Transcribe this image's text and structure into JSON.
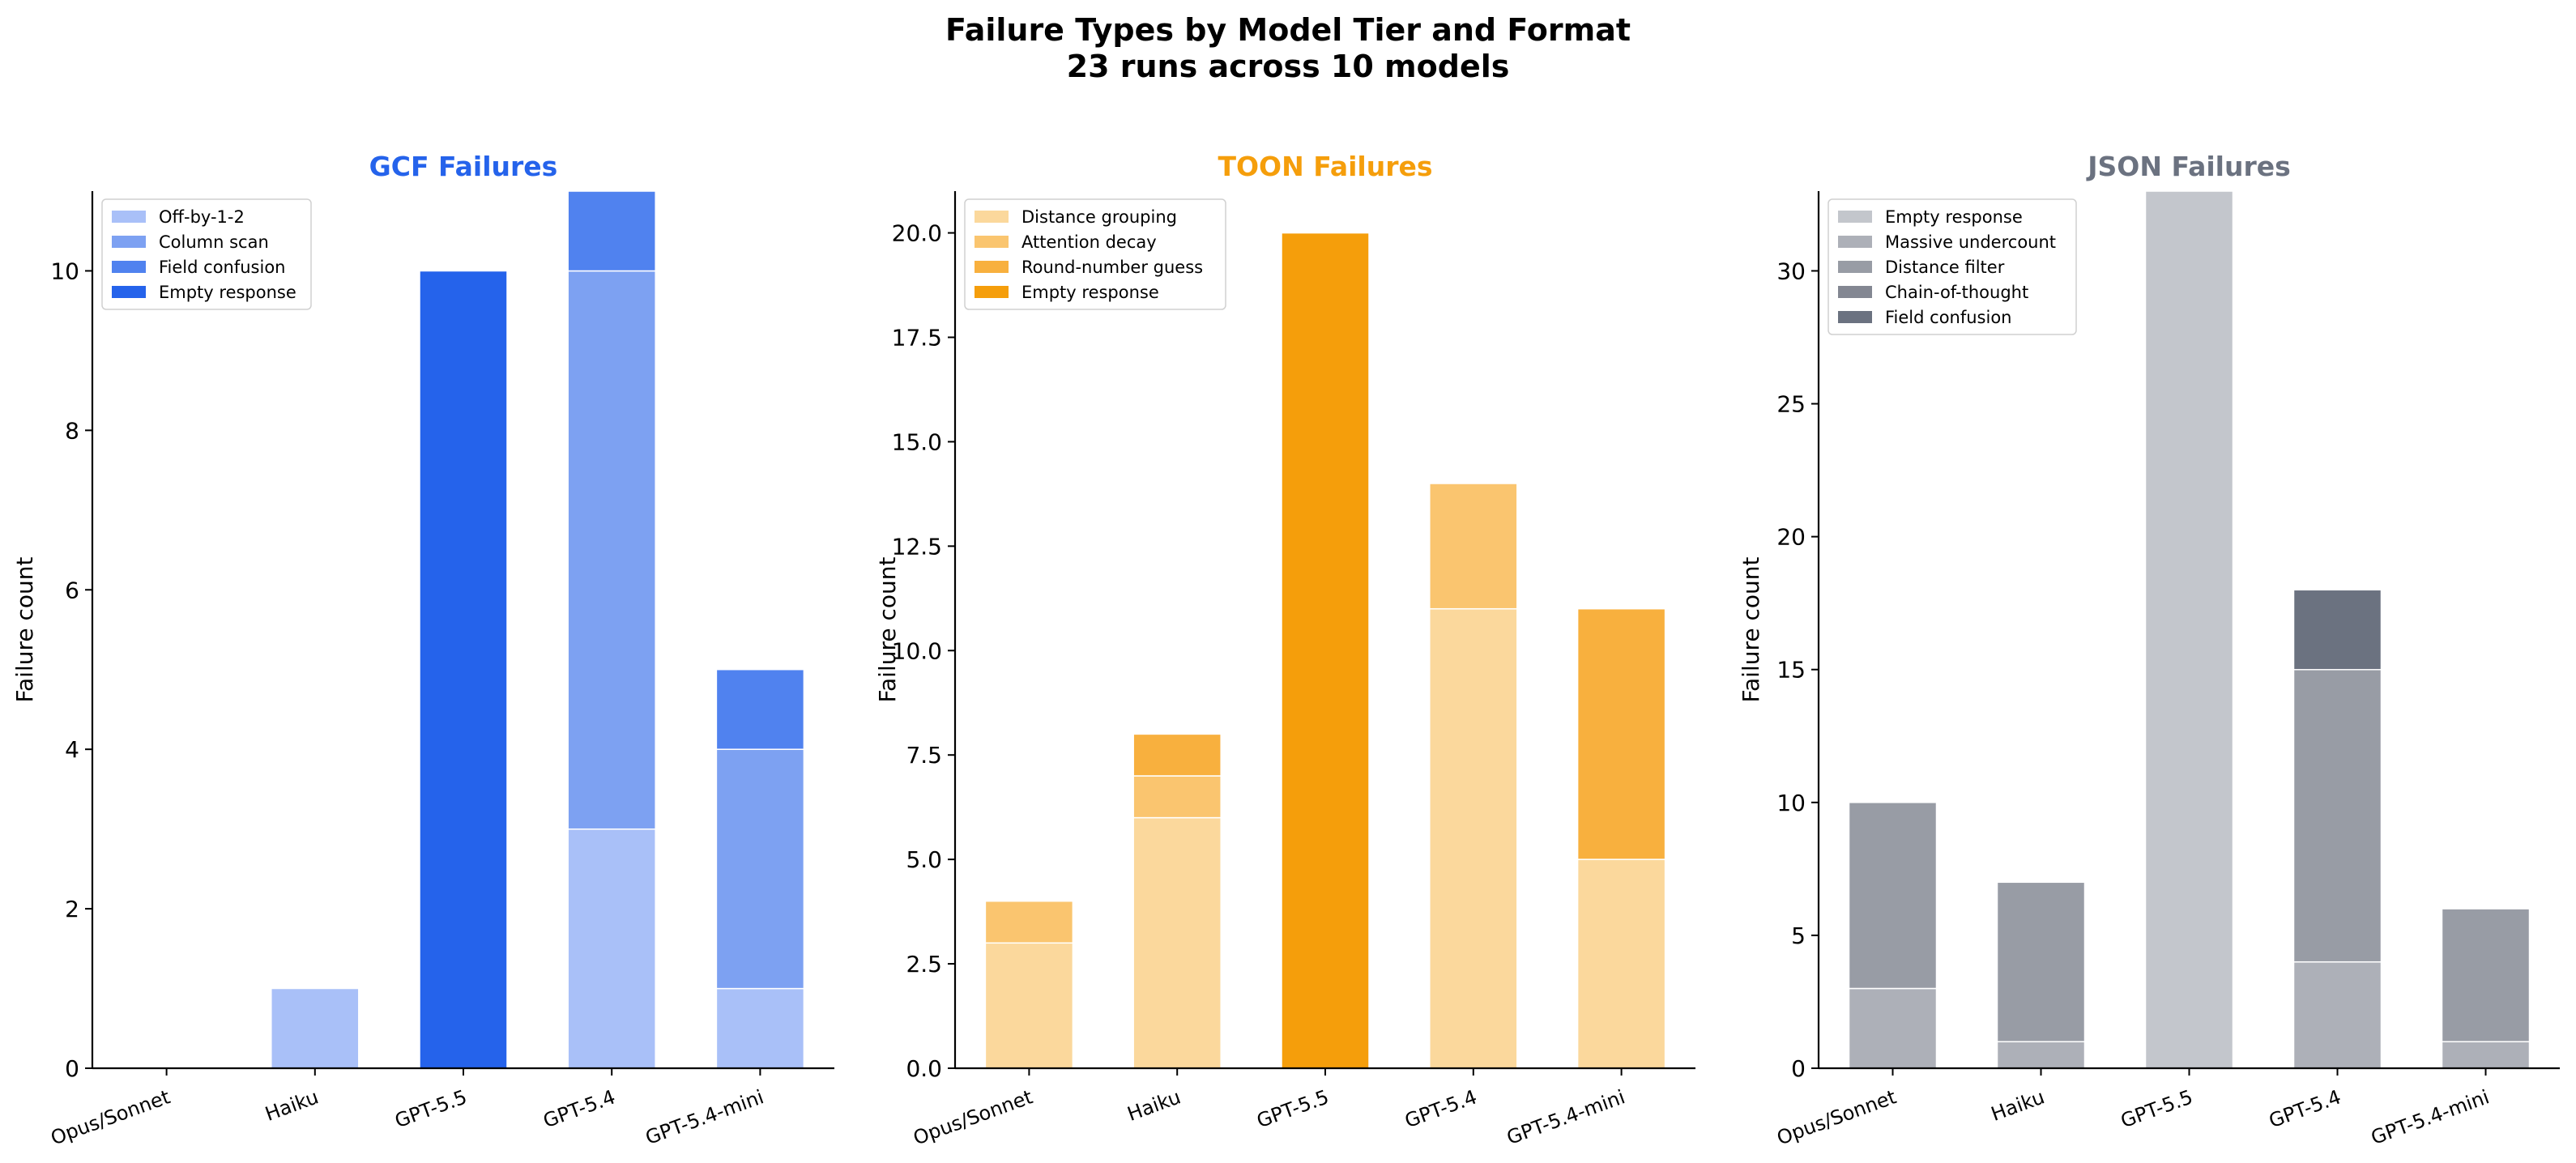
{
  "figure": {
    "title_line1": "Failure Types by Model Tier and Format",
    "title_line2": "23 runs across 10 models"
  },
  "chart_data": [
    {
      "type": "bar",
      "stacked": true,
      "title": "GCF Failures",
      "title_color": "#2563eb",
      "xlabel": "",
      "ylabel": "Failure count",
      "categories": [
        "Opus/Sonnet",
        "Haiku",
        "GPT-5.5",
        "GPT-5.4",
        "GPT-5.4-mini"
      ],
      "ylim": [
        0,
        11
      ],
      "yticks": [
        0,
        2,
        4,
        6,
        8,
        10
      ],
      "ytick_labels": [
        "0",
        "2",
        "4",
        "6",
        "8",
        "10"
      ],
      "legend_position": "top-left",
      "grid": false,
      "series": [
        {
          "name": "Off-by-1-2",
          "color": "#a9c0f8",
          "values": [
            0,
            1,
            0,
            3,
            1
          ]
        },
        {
          "name": "Column scan",
          "color": "#7da1f2",
          "values": [
            0,
            0,
            0,
            7,
            3
          ]
        },
        {
          "name": "Field confusion",
          "color": "#5082ef",
          "values": [
            0,
            0,
            0,
            1,
            1
          ]
        },
        {
          "name": "Empty response",
          "color": "#2563eb",
          "values": [
            0,
            0,
            10,
            0,
            0
          ]
        }
      ]
    },
    {
      "type": "bar",
      "stacked": true,
      "title": "TOON Failures",
      "title_color": "#f59e0b",
      "xlabel": "",
      "ylabel": "Failure count",
      "categories": [
        "Opus/Sonnet",
        "Haiku",
        "GPT-5.5",
        "GPT-5.4",
        "GPT-5.4-mini"
      ],
      "ylim": [
        0,
        21
      ],
      "yticks": [
        0,
        2.5,
        5,
        7.5,
        10,
        12.5,
        15,
        17.5,
        20
      ],
      "ytick_labels": [
        "0.0",
        "2.5",
        "5.0",
        "7.5",
        "10.0",
        "12.5",
        "15.0",
        "17.5",
        "20.0"
      ],
      "legend_position": "top-left",
      "grid": false,
      "series": [
        {
          "name": "Distance grouping",
          "color": "#fbd89c",
          "values": [
            3,
            6,
            0,
            11,
            5
          ]
        },
        {
          "name": "Attention decay",
          "color": "#fac56f",
          "values": [
            1,
            1,
            0,
            3,
            0
          ]
        },
        {
          "name": "Round-number guess",
          "color": "#f8b03e",
          "values": [
            0,
            1,
            0,
            0,
            6
          ]
        },
        {
          "name": "Empty response",
          "color": "#f59e0b",
          "values": [
            0,
            0,
            20,
            0,
            0
          ]
        }
      ]
    },
    {
      "type": "bar",
      "stacked": true,
      "title": "JSON Failures",
      "title_color": "#6b7280",
      "xlabel": "",
      "ylabel": "Failure count",
      "categories": [
        "Opus/Sonnet",
        "Haiku",
        "GPT-5.5",
        "GPT-5.4",
        "GPT-5.4-mini"
      ],
      "ylim": [
        0,
        33
      ],
      "yticks": [
        0,
        5,
        10,
        15,
        20,
        25,
        30
      ],
      "ytick_labels": [
        "0",
        "5",
        "10",
        "15",
        "20",
        "25",
        "30"
      ],
      "legend_position": "top-left",
      "grid": false,
      "series": [
        {
          "name": "Empty response",
          "color": "#c3c6cc",
          "values": [
            0,
            0,
            33,
            0,
            0
          ]
        },
        {
          "name": "Massive undercount",
          "color": "#adb0b8",
          "values": [
            3,
            1,
            0,
            4,
            1
          ]
        },
        {
          "name": "Distance filter",
          "color": "#989ca5",
          "values": [
            7,
            6,
            0,
            11,
            5
          ]
        },
        {
          "name": "Chain-of-thought",
          "color": "#838792",
          "values": [
            0,
            0,
            0,
            0,
            0
          ]
        },
        {
          "name": "Field confusion",
          "color": "#6b7280",
          "values": [
            0,
            0,
            0,
            3,
            0
          ]
        }
      ]
    }
  ]
}
